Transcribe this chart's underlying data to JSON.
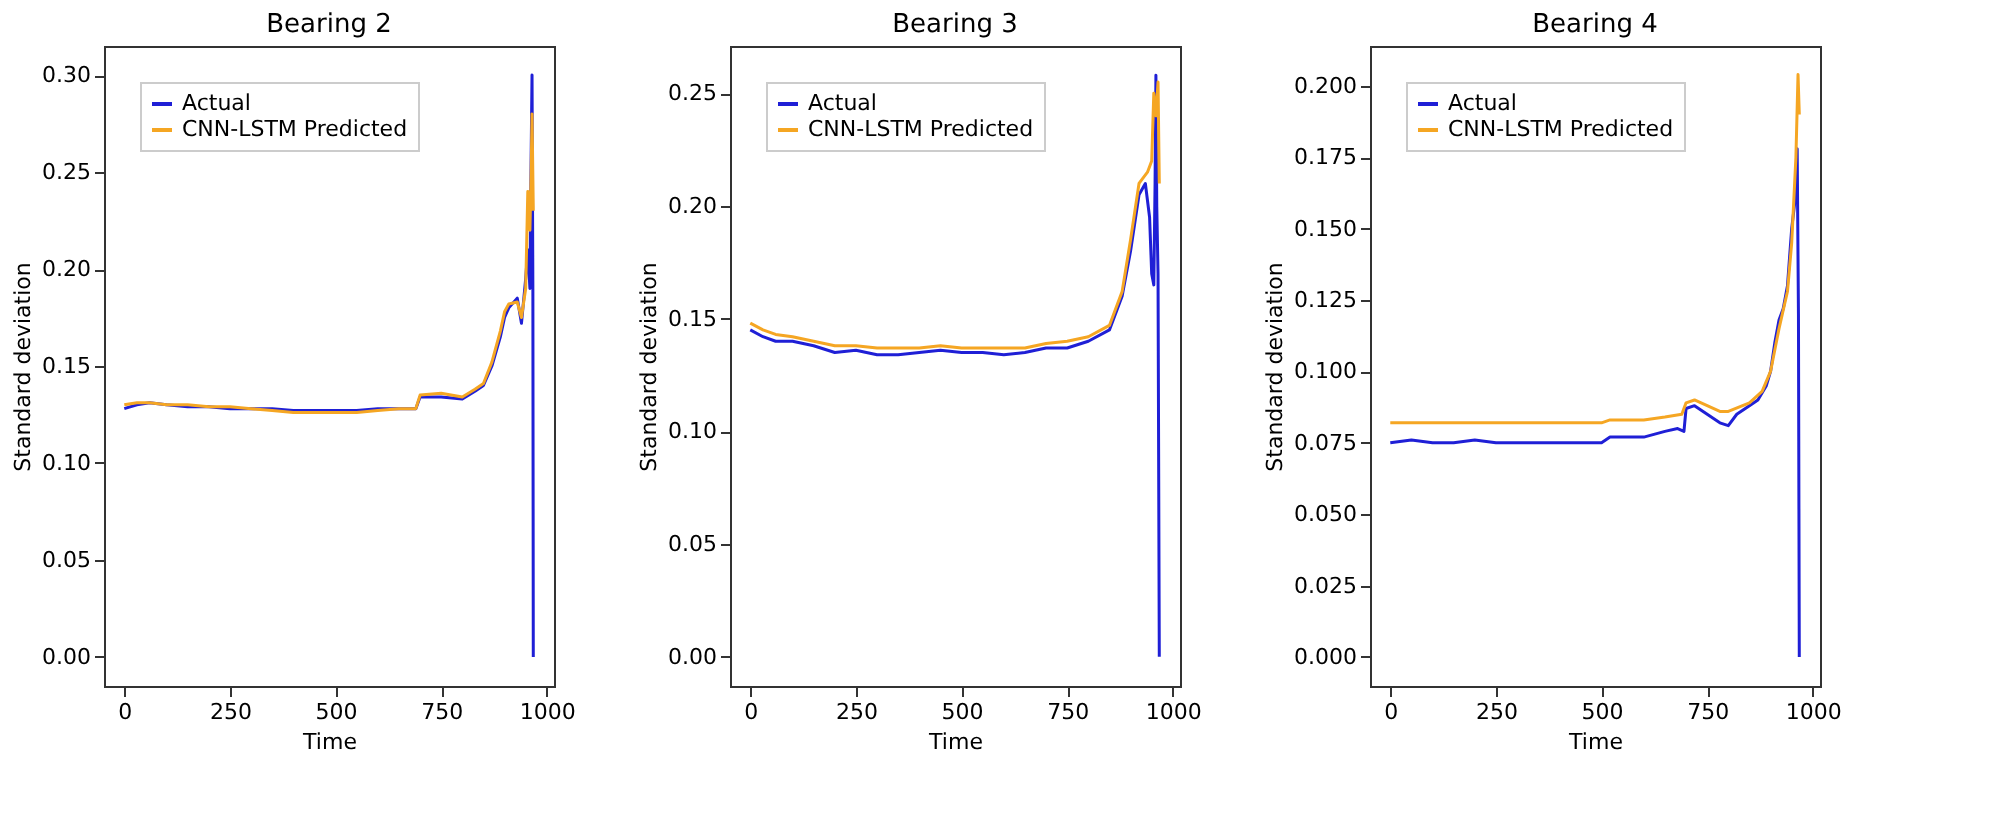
{
  "chart_data": [
    {
      "type": "line",
      "title": "Bearing 2",
      "xlabel": "Time",
      "ylabel": "Standard deviation",
      "legend": "top left",
      "grid": false,
      "xlim": [
        -48,
        1017
      ],
      "xticks": [
        0,
        250,
        500,
        750,
        1000
      ],
      "ylim": [
        -0.015,
        0.315
      ],
      "yticks": [
        {
          "value": 0,
          "label": "0.00"
        },
        0.05,
        {
          "value": 0.1,
          "label": "0.10"
        },
        0.15,
        {
          "value": 0.2,
          "label": "0.20"
        },
        0.25,
        {
          "value": 0.3,
          "label": "0.30"
        }
      ],
      "series": [
        {
          "name": "Actual",
          "color": "#1f1fd6",
          "x": [
            0,
            30,
            60,
            100,
            150,
            200,
            250,
            300,
            350,
            400,
            450,
            500,
            550,
            600,
            650,
            690,
            700,
            750,
            800,
            830,
            850,
            870,
            890,
            900,
            910,
            930,
            940,
            950,
            955,
            960,
            963,
            965,
            967,
            968
          ],
          "values": [
            0.128,
            0.13,
            0.131,
            0.13,
            0.129,
            0.129,
            0.128,
            0.128,
            0.128,
            0.127,
            0.127,
            0.127,
            0.127,
            0.128,
            0.128,
            0.128,
            0.134,
            0.134,
            0.133,
            0.137,
            0.14,
            0.15,
            0.165,
            0.175,
            0.18,
            0.185,
            0.172,
            0.195,
            0.21,
            0.19,
            0.26,
            0.3,
            0.19,
            0.0
          ]
        },
        {
          "name": "CNN-LSTM Predicted",
          "color": "#f5a623",
          "x": [
            0,
            30,
            60,
            100,
            150,
            200,
            250,
            300,
            350,
            400,
            450,
            500,
            550,
            600,
            650,
            690,
            700,
            750,
            800,
            830,
            850,
            870,
            890,
            900,
            910,
            930,
            940,
            950,
            955,
            960,
            963,
            965,
            968
          ],
          "values": [
            0.13,
            0.131,
            0.131,
            0.13,
            0.13,
            0.129,
            0.129,
            0.128,
            0.127,
            0.126,
            0.126,
            0.126,
            0.126,
            0.127,
            0.128,
            0.128,
            0.135,
            0.136,
            0.134,
            0.138,
            0.141,
            0.152,
            0.168,
            0.178,
            0.182,
            0.183,
            0.175,
            0.19,
            0.24,
            0.22,
            0.25,
            0.28,
            0.23
          ]
        }
      ]
    },
    {
      "type": "line",
      "title": "Bearing 3",
      "xlabel": "Time",
      "ylabel": "Standard deviation",
      "legend": "top left",
      "grid": false,
      "xlim": [
        -48,
        1017
      ],
      "xticks": [
        0,
        250,
        500,
        750,
        1000
      ],
      "ylim": [
        -0.013,
        0.271
      ],
      "yticks": [
        {
          "value": 0,
          "label": "0.00"
        },
        0.05,
        {
          "value": 0.1,
          "label": "0.10"
        },
        0.15,
        {
          "value": 0.2,
          "label": "0.20"
        },
        0.25
      ],
      "series": [
        {
          "name": "Actual",
          "color": "#1f1fd6",
          "x": [
            0,
            30,
            60,
            100,
            150,
            200,
            250,
            300,
            350,
            400,
            450,
            500,
            550,
            600,
            650,
            700,
            750,
            800,
            850,
            880,
            900,
            920,
            935,
            945,
            950,
            955,
            958,
            960,
            962,
            965,
            968
          ],
          "values": [
            0.145,
            0.142,
            0.14,
            0.14,
            0.138,
            0.135,
            0.136,
            0.134,
            0.134,
            0.135,
            0.136,
            0.135,
            0.135,
            0.134,
            0.135,
            0.137,
            0.137,
            0.14,
            0.145,
            0.16,
            0.18,
            0.205,
            0.21,
            0.195,
            0.17,
            0.165,
            0.21,
            0.258,
            0.2,
            0.17,
            0.0
          ]
        },
        {
          "name": "CNN-LSTM Predicted",
          "color": "#f5a623",
          "x": [
            0,
            30,
            60,
            100,
            150,
            200,
            250,
            300,
            350,
            400,
            450,
            500,
            550,
            600,
            650,
            700,
            750,
            800,
            850,
            880,
            900,
            920,
            940,
            950,
            955,
            960,
            965,
            968
          ],
          "values": [
            0.148,
            0.145,
            0.143,
            0.142,
            0.14,
            0.138,
            0.138,
            0.137,
            0.137,
            0.137,
            0.138,
            0.137,
            0.137,
            0.137,
            0.137,
            0.139,
            0.14,
            0.142,
            0.147,
            0.162,
            0.185,
            0.21,
            0.215,
            0.22,
            0.25,
            0.24,
            0.255,
            0.21
          ]
        }
      ]
    },
    {
      "type": "line",
      "title": "Bearing 4",
      "xlabel": "Time",
      "ylabel": "Standard deviation",
      "legend": "top left",
      "grid": false,
      "xlim": [
        -48,
        1017
      ],
      "xticks": [
        0,
        250,
        500,
        750,
        1000
      ],
      "ylim": [
        -0.0102,
        0.214
      ],
      "yticks": [
        {
          "value": 0,
          "label": "0.000"
        },
        {
          "value": 0.025,
          "label": "0.025"
        },
        {
          "value": 0.05,
          "label": "0.050"
        },
        0.075,
        {
          "value": 0.1,
          "label": "0.100"
        },
        0.125,
        {
          "value": 0.15,
          "label": "0.150"
        },
        0.175,
        {
          "value": 0.2,
          "label": "0.200"
        }
      ],
      "series": [
        {
          "name": "Actual",
          "color": "#1f1fd6",
          "x": [
            0,
            50,
            100,
            150,
            200,
            250,
            300,
            350,
            400,
            450,
            500,
            520,
            600,
            650,
            680,
            695,
            700,
            720,
            750,
            780,
            800,
            820,
            850,
            870,
            890,
            900,
            910,
            920,
            930,
            940,
            950,
            958,
            963,
            966,
            968
          ],
          "values": [
            0.075,
            0.076,
            0.075,
            0.075,
            0.076,
            0.075,
            0.075,
            0.075,
            0.075,
            0.075,
            0.075,
            0.077,
            0.077,
            0.079,
            0.08,
            0.079,
            0.087,
            0.088,
            0.085,
            0.082,
            0.081,
            0.085,
            0.088,
            0.09,
            0.095,
            0.1,
            0.11,
            0.118,
            0.122,
            0.13,
            0.15,
            0.16,
            0.178,
            0.12,
            0.0
          ]
        },
        {
          "name": "CNN-LSTM Predicted",
          "color": "#f5a623",
          "x": [
            0,
            50,
            100,
            150,
            200,
            250,
            300,
            350,
            400,
            450,
            500,
            520,
            600,
            650,
            690,
            700,
            720,
            750,
            780,
            800,
            850,
            880,
            900,
            920,
            940,
            950,
            960,
            965,
            968
          ],
          "values": [
            0.082,
            0.082,
            0.082,
            0.082,
            0.082,
            0.082,
            0.082,
            0.082,
            0.082,
            0.082,
            0.082,
            0.083,
            0.083,
            0.084,
            0.085,
            0.089,
            0.09,
            0.088,
            0.086,
            0.086,
            0.089,
            0.093,
            0.1,
            0.115,
            0.128,
            0.145,
            0.175,
            0.204,
            0.19
          ]
        }
      ]
    }
  ]
}
